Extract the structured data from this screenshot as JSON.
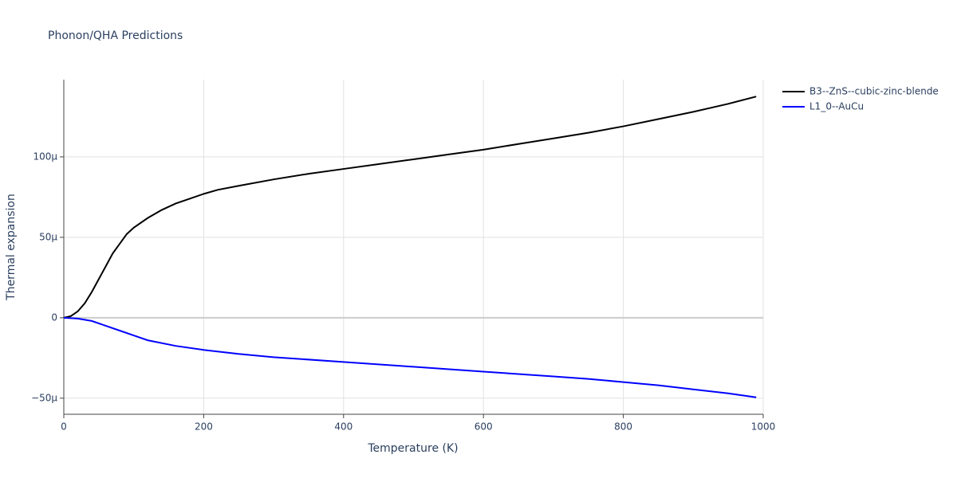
{
  "chart_data": {
    "type": "line",
    "title": "Phonon/QHA Predictions",
    "x_label": "Temperature (K)",
    "y_label": "Thermal expansion",
    "xlim": [
      0,
      1000
    ],
    "xticks": [
      0,
      200,
      400,
      600,
      800,
      1000
    ],
    "ylim": [
      -6e-05,
      0.000148
    ],
    "yticks": [
      {
        "value": -5e-05,
        "label": "−50µ"
      },
      0,
      {
        "value": 5e-05,
        "label": "50µ"
      },
      {
        "value": 0.0001,
        "label": "100µ"
      }
    ],
    "grid": true,
    "legend": "outside-top-right",
    "series": [
      {
        "name": "B3--ZnS--cubic-zinc-blende",
        "color": "#000000",
        "x": [
          0,
          10,
          20,
          30,
          40,
          50,
          60,
          70,
          80,
          90,
          100,
          120,
          140,
          160,
          180,
          200,
          220,
          250,
          300,
          350,
          400,
          450,
          500,
          550,
          600,
          650,
          700,
          750,
          800,
          850,
          900,
          950,
          990
        ],
        "values": [
          0,
          1e-06,
          4e-06,
          9e-06,
          1.6e-05,
          2.4e-05,
          3.2e-05,
          4e-05,
          4.6e-05,
          5.2e-05,
          5.6e-05,
          6.2e-05,
          6.7e-05,
          7.1e-05,
          7.4e-05,
          7.7e-05,
          7.95e-05,
          8.2e-05,
          8.6e-05,
          8.95e-05,
          9.25e-05,
          9.55e-05,
          9.85e-05,
          0.0001015,
          0.0001045,
          0.000108,
          0.0001115,
          0.000115,
          0.000119,
          0.0001235,
          0.000128,
          0.000133,
          0.0001375
        ]
      },
      {
        "name": "L1_0--AuCu",
        "color": "#0000ff",
        "x": [
          0,
          20,
          40,
          60,
          80,
          100,
          120,
          160,
          200,
          250,
          300,
          400,
          500,
          600,
          700,
          750,
          800,
          850,
          900,
          950,
          990
        ],
        "values": [
          0,
          -5e-07,
          -2e-06,
          -5e-06,
          -8e-06,
          -1.1e-05,
          -1.4e-05,
          -1.75e-05,
          -2e-05,
          -2.25e-05,
          -2.45e-05,
          -2.75e-05,
          -3.05e-05,
          -3.35e-05,
          -3.65e-05,
          -3.8e-05,
          -4e-05,
          -4.2e-05,
          -4.45e-05,
          -4.7e-05,
          -4.95e-05
        ]
      }
    ]
  }
}
